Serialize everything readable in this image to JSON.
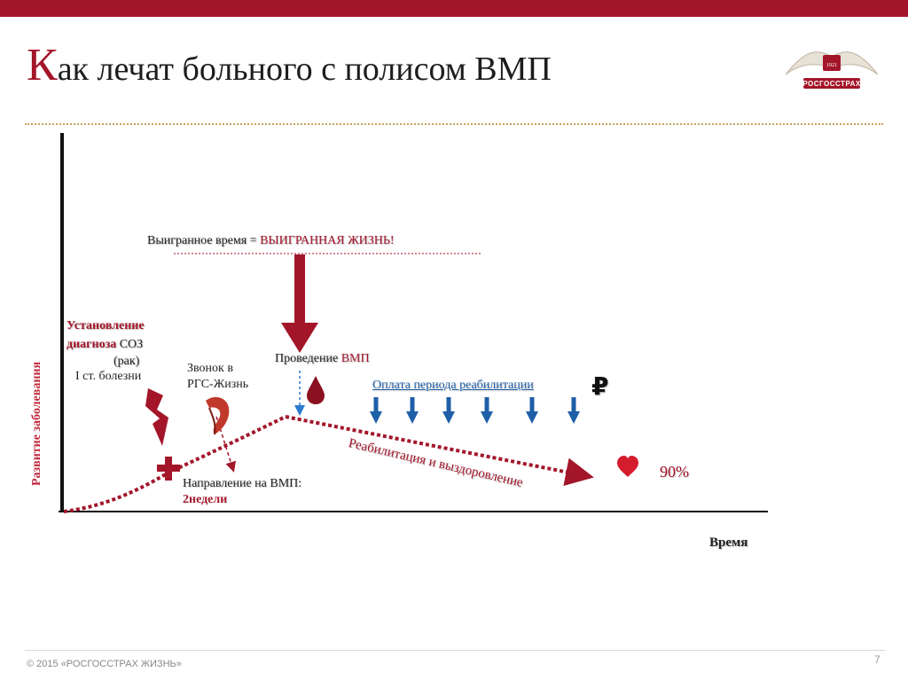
{
  "header": {
    "title_first_letter": "К",
    "title_rest": "ак лечат больного с полисом ВМП",
    "logo_text": "РОСГОССТРАХ",
    "logo_year": "1921"
  },
  "diagram": {
    "y_axis_label": "Развитие заболевания",
    "x_axis_label": "Время",
    "won_time_prefix": "Выигранное время = ",
    "won_time_emphasis": "ВЫИГРАННАЯ ЖИЗНЬ!",
    "diagnosis_line1": "Установление",
    "diagnosis_line2_red": "диагноза ",
    "diagnosis_line2_dark": "СОЗ",
    "diagnosis_line3": "(рак)",
    "stage": "I ст.  болезни",
    "call_line1": "Звонок в",
    "call_line2": "РГС-Жизнь",
    "treatment_prefix": "Проведение ",
    "treatment_emphasis": "ВМП",
    "payment": "Оплата периода реабилитации",
    "ruble": "₽",
    "referral_line1": "Направление на ВМП:",
    "referral_line2": "2недели",
    "rehabilitation": "Реабилитация и выздоровление",
    "recovery_percent": "90%",
    "colors": {
      "accent": "#a3162a",
      "payment_blue": "#1f5fa8",
      "axis": "#111111"
    },
    "icons": [
      "lightning-icon",
      "medical-cross-icon",
      "phone-icon",
      "blood-drop-icon",
      "down-arrow-icon",
      "heart-icon",
      "ruble-icon"
    ]
  },
  "footer": {
    "copyright": "© 2015 «РОСГОССТРАХ ЖИЗНЬ»",
    "page_number": "7"
  }
}
